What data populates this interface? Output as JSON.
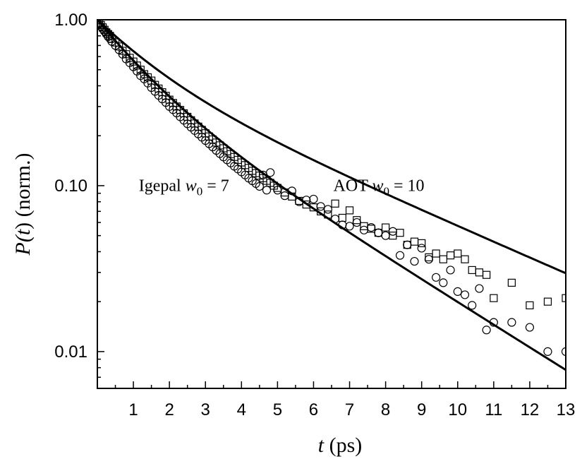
{
  "chart_data": {
    "type": "scatter",
    "xlabel": {
      "var": "t",
      "unit": " (ps)"
    },
    "ylabel": {
      "func": "P(",
      "var": "t",
      "close": ")",
      "unit": " (norm.)"
    },
    "xlim": [
      0,
      13
    ],
    "ylim": [
      0.006,
      1.0
    ],
    "yscale": "log",
    "xticks": [
      1,
      2,
      3,
      4,
      5,
      6,
      7,
      8,
      9,
      10,
      11,
      12,
      13
    ],
    "yticks": [
      {
        "value": 1.0,
        "label": "1.00"
      },
      {
        "value": 0.1,
        "label": "0.10"
      },
      {
        "value": 0.01,
        "label": "0.01"
      }
    ],
    "grid": false,
    "annotations": [
      {
        "name": "igepal",
        "prefix": "Igepal ",
        "var": "w",
        "sub": "0",
        "suffix": " = 7",
        "x": 1.15,
        "y": 0.093
      },
      {
        "name": "aot",
        "prefix": "AOT ",
        "var": "w",
        "sub": "0",
        "suffix": " = 10",
        "x": 6.55,
        "y": 0.093
      }
    ],
    "series": [
      {
        "marker": "square",
        "fit": {
          "a1": 0.5,
          "tau1": 1.4,
          "a2": 0.5,
          "tau2": 4.6,
          "color": "#000000"
        },
        "x": [
          0.05,
          0.1,
          0.15,
          0.2,
          0.25,
          0.3,
          0.35,
          0.4,
          0.5,
          0.6,
          0.7,
          0.8,
          0.9,
          1.0,
          1.1,
          1.2,
          1.3,
          1.4,
          1.5,
          1.6,
          1.7,
          1.8,
          1.9,
          2.0,
          2.1,
          2.2,
          2.3,
          2.4,
          2.5,
          2.6,
          2.7,
          2.8,
          2.9,
          3.0,
          3.1,
          3.2,
          3.3,
          3.4,
          3.5,
          3.6,
          3.7,
          3.8,
          3.9,
          4.0,
          4.1,
          4.2,
          4.3,
          4.4,
          4.5,
          4.6,
          4.7,
          4.8,
          4.9,
          5.0,
          5.2,
          5.4,
          5.6,
          5.8,
          6.0,
          6.2,
          6.4,
          6.6,
          6.8,
          7.0,
          7.2,
          7.4,
          7.6,
          7.8,
          8.0,
          8.2,
          8.4,
          8.6,
          8.8,
          9.0,
          9.2,
          9.4,
          9.6,
          9.8,
          10.0,
          10.2,
          10.4,
          10.6,
          10.8,
          11.0,
          11.5,
          12.0,
          12.5,
          13.0
        ],
        "y": [
          0.96,
          0.93,
          0.9,
          0.87,
          0.84,
          0.82,
          0.8,
          0.77,
          0.73,
          0.69,
          0.65,
          0.62,
          0.59,
          0.56,
          0.53,
          0.5,
          0.47,
          0.45,
          0.43,
          0.405,
          0.385,
          0.366,
          0.348,
          0.33,
          0.315,
          0.3,
          0.286,
          0.273,
          0.26,
          0.248,
          0.237,
          0.227,
          0.217,
          0.207,
          0.198,
          0.19,
          0.182,
          0.175,
          0.168,
          0.161,
          0.155,
          0.149,
          0.143,
          0.138,
          0.133,
          0.128,
          0.123,
          0.119,
          0.115,
          0.111,
          0.107,
          0.104,
          0.1,
          0.097,
          0.091,
          0.086,
          0.081,
          0.077,
          0.074,
          0.07,
          0.067,
          0.078,
          0.064,
          0.071,
          0.062,
          0.057,
          0.055,
          0.052,
          0.056,
          0.05,
          0.052,
          0.044,
          0.046,
          0.045,
          0.037,
          0.039,
          0.036,
          0.038,
          0.039,
          0.036,
          0.031,
          0.03,
          0.029,
          0.021,
          0.026,
          0.019,
          0.02,
          0.021
        ]
      },
      {
        "marker": "circle",
        "fit": {
          "a1": 0.55,
          "tau1": 1.2,
          "a2": 0.45,
          "tau2": 3.2,
          "color": "#000000"
        },
        "x": [
          0.05,
          0.1,
          0.15,
          0.2,
          0.25,
          0.3,
          0.35,
          0.4,
          0.5,
          0.6,
          0.7,
          0.8,
          0.9,
          1.0,
          1.1,
          1.2,
          1.3,
          1.4,
          1.5,
          1.6,
          1.7,
          1.8,
          1.9,
          2.0,
          2.1,
          2.2,
          2.3,
          2.4,
          2.5,
          2.6,
          2.7,
          2.8,
          2.9,
          3.0,
          3.1,
          3.2,
          3.3,
          3.4,
          3.5,
          3.6,
          3.7,
          3.8,
          3.9,
          4.0,
          4.1,
          4.2,
          4.3,
          4.4,
          4.5,
          4.6,
          4.7,
          4.8,
          5.0,
          5.2,
          5.4,
          5.6,
          5.8,
          6.0,
          6.2,
          6.4,
          6.6,
          6.8,
          7.0,
          7.2,
          7.4,
          7.6,
          7.8,
          8.0,
          8.2,
          8.4,
          8.6,
          8.8,
          9.0,
          9.2,
          9.4,
          9.6,
          9.8,
          10.0,
          10.2,
          10.4,
          10.6,
          10.8,
          11.0,
          11.5,
          12.0,
          12.5,
          13.0
        ],
        "y": [
          0.94,
          0.91,
          0.88,
          0.85,
          0.82,
          0.79,
          0.77,
          0.74,
          0.7,
          0.66,
          0.62,
          0.58,
          0.55,
          0.52,
          0.49,
          0.46,
          0.44,
          0.415,
          0.39,
          0.37,
          0.35,
          0.333,
          0.317,
          0.3,
          0.287,
          0.274,
          0.26,
          0.248,
          0.236,
          0.225,
          0.215,
          0.205,
          0.196,
          0.187,
          0.179,
          0.171,
          0.163,
          0.156,
          0.149,
          0.143,
          0.137,
          0.131,
          0.126,
          0.121,
          0.116,
          0.111,
          0.107,
          0.103,
          0.099,
          0.116,
          0.094,
          0.12,
          0.094,
          0.087,
          0.093,
          0.08,
          0.082,
          0.083,
          0.075,
          0.072,
          0.063,
          0.058,
          0.057,
          0.06,
          0.054,
          0.056,
          0.052,
          0.05,
          0.053,
          0.038,
          0.044,
          0.035,
          0.042,
          0.036,
          0.028,
          0.026,
          0.031,
          0.023,
          0.022,
          0.019,
          0.024,
          0.0135,
          0.015,
          0.015,
          0.014,
          0.01,
          0.01
        ]
      }
    ]
  }
}
